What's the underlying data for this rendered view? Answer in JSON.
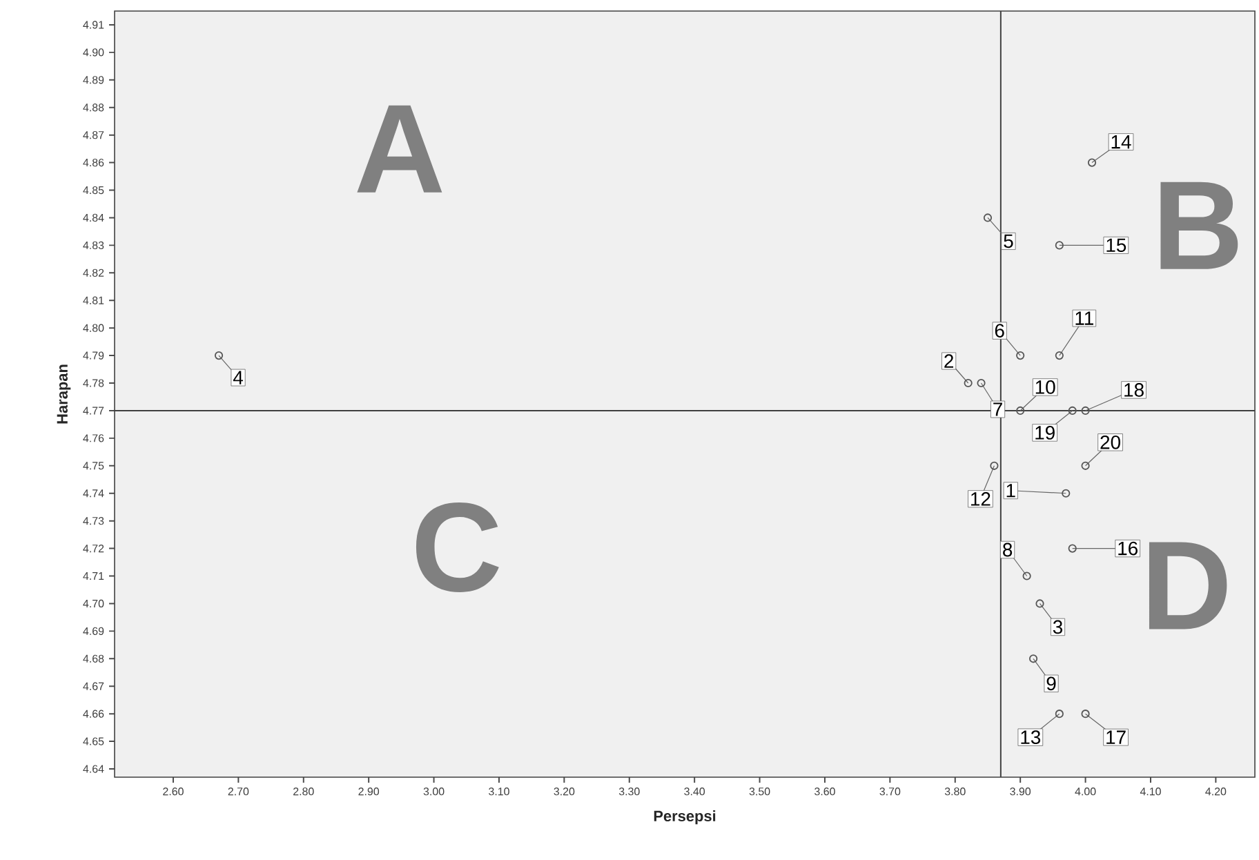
{
  "chart_data": {
    "type": "scatter",
    "xlabel": "Persepsi",
    "ylabel": "Harapan",
    "marker": "circle",
    "grid": false,
    "series": [
      {
        "color": "#555555",
        "x": [
          3.97,
          3.82,
          3.93,
          2.67,
          3.85,
          3.9,
          3.84,
          3.91,
          3.92,
          3.9,
          3.96,
          3.86,
          3.96,
          4.01,
          3.96,
          3.98,
          4.0,
          4.0,
          3.98,
          4.0
        ],
        "values": [
          4.74,
          4.78,
          4.7,
          4.79,
          4.84,
          4.79,
          4.78,
          4.71,
          4.68,
          4.77,
          4.79,
          4.75,
          4.66,
          4.86,
          4.83,
          4.72,
          4.66,
          4.77,
          4.77,
          4.75
        ]
      }
    ],
    "xlim": [
      2.51,
      4.26
    ],
    "ylim": [
      4.637,
      4.915
    ],
    "xticks": [
      {
        "value": 2.6,
        "label": "2.60"
      },
      {
        "value": 2.7,
        "label": "2.70"
      },
      {
        "value": 2.8,
        "label": "2.80"
      },
      {
        "value": 2.9,
        "label": "2.90"
      },
      {
        "value": 3.0,
        "label": "3.00"
      },
      {
        "value": 3.1,
        "label": "3.10"
      },
      {
        "value": 3.2,
        "label": "3.20"
      },
      {
        "value": 3.3,
        "label": "3.30"
      },
      {
        "value": 3.4,
        "label": "3.40"
      },
      {
        "value": 3.5,
        "label": "3.50"
      },
      {
        "value": 3.6,
        "label": "3.60"
      },
      {
        "value": 3.7,
        "label": "3.70"
      },
      {
        "value": 3.8,
        "label": "3.80"
      },
      {
        "value": 3.9,
        "label": "3.90"
      },
      {
        "value": 4.0,
        "label": "4.00"
      },
      {
        "value": 4.1,
        "label": "4.10"
      },
      {
        "value": 4.2,
        "label": "4.20"
      }
    ],
    "yticks": [
      4.64,
      4.65,
      4.66,
      4.67,
      4.68,
      4.69,
      {
        "value": 4.7,
        "label": "4.70"
      },
      4.71,
      4.72,
      4.73,
      4.74,
      4.75,
      4.76,
      4.77,
      4.78,
      4.79,
      {
        "value": 4.8,
        "label": "4.80"
      },
      4.81,
      4.82,
      4.83,
      4.84,
      4.85,
      4.86,
      4.87,
      4.88,
      4.89,
      {
        "value": 4.9,
        "label": "4.90"
      },
      4.91
    ],
    "ref_lines": [
      {
        "axis": "x",
        "value": 3.87,
        "color": "#404040"
      },
      {
        "axis": "y",
        "value": 4.77,
        "color": "#404040"
      }
    ],
    "annotations": [
      {
        "text": "1",
        "x": 3.97,
        "y": 4.74
      },
      {
        "text": "2",
        "x": 3.82,
        "y": 4.78
      },
      {
        "text": "3",
        "x": 3.93,
        "y": 4.7
      },
      {
        "text": "4",
        "x": 2.67,
        "y": 4.79
      },
      {
        "text": "5",
        "x": 3.85,
        "y": 4.84
      },
      {
        "text": "6",
        "x": 3.9,
        "y": 4.79
      },
      {
        "text": "7",
        "x": 3.84,
        "y": 4.78
      },
      {
        "text": "8",
        "x": 3.91,
        "y": 4.71
      },
      {
        "text": "9",
        "x": 3.92,
        "y": 4.68
      },
      {
        "text": "10",
        "x": 3.9,
        "y": 4.77
      },
      {
        "text": "11",
        "x": 3.96,
        "y": 4.79
      },
      {
        "text": "12",
        "x": 3.86,
        "y": 4.75
      },
      {
        "text": "13",
        "x": 3.96,
        "y": 4.66
      },
      {
        "text": "14",
        "x": 4.01,
        "y": 4.86
      },
      {
        "text": "15",
        "x": 3.96,
        "y": 4.83
      },
      {
        "text": "16",
        "x": 3.98,
        "y": 4.72
      },
      {
        "text": "17",
        "x": 4.0,
        "y": 4.66
      },
      {
        "text": "18",
        "x": 4.0,
        "y": 4.77
      },
      {
        "text": "19",
        "x": 3.98,
        "y": 4.77
      },
      {
        "text": "20",
        "x": 4.0,
        "y": 4.75
      },
      "A",
      "B",
      "C",
      "D"
    ]
  }
}
